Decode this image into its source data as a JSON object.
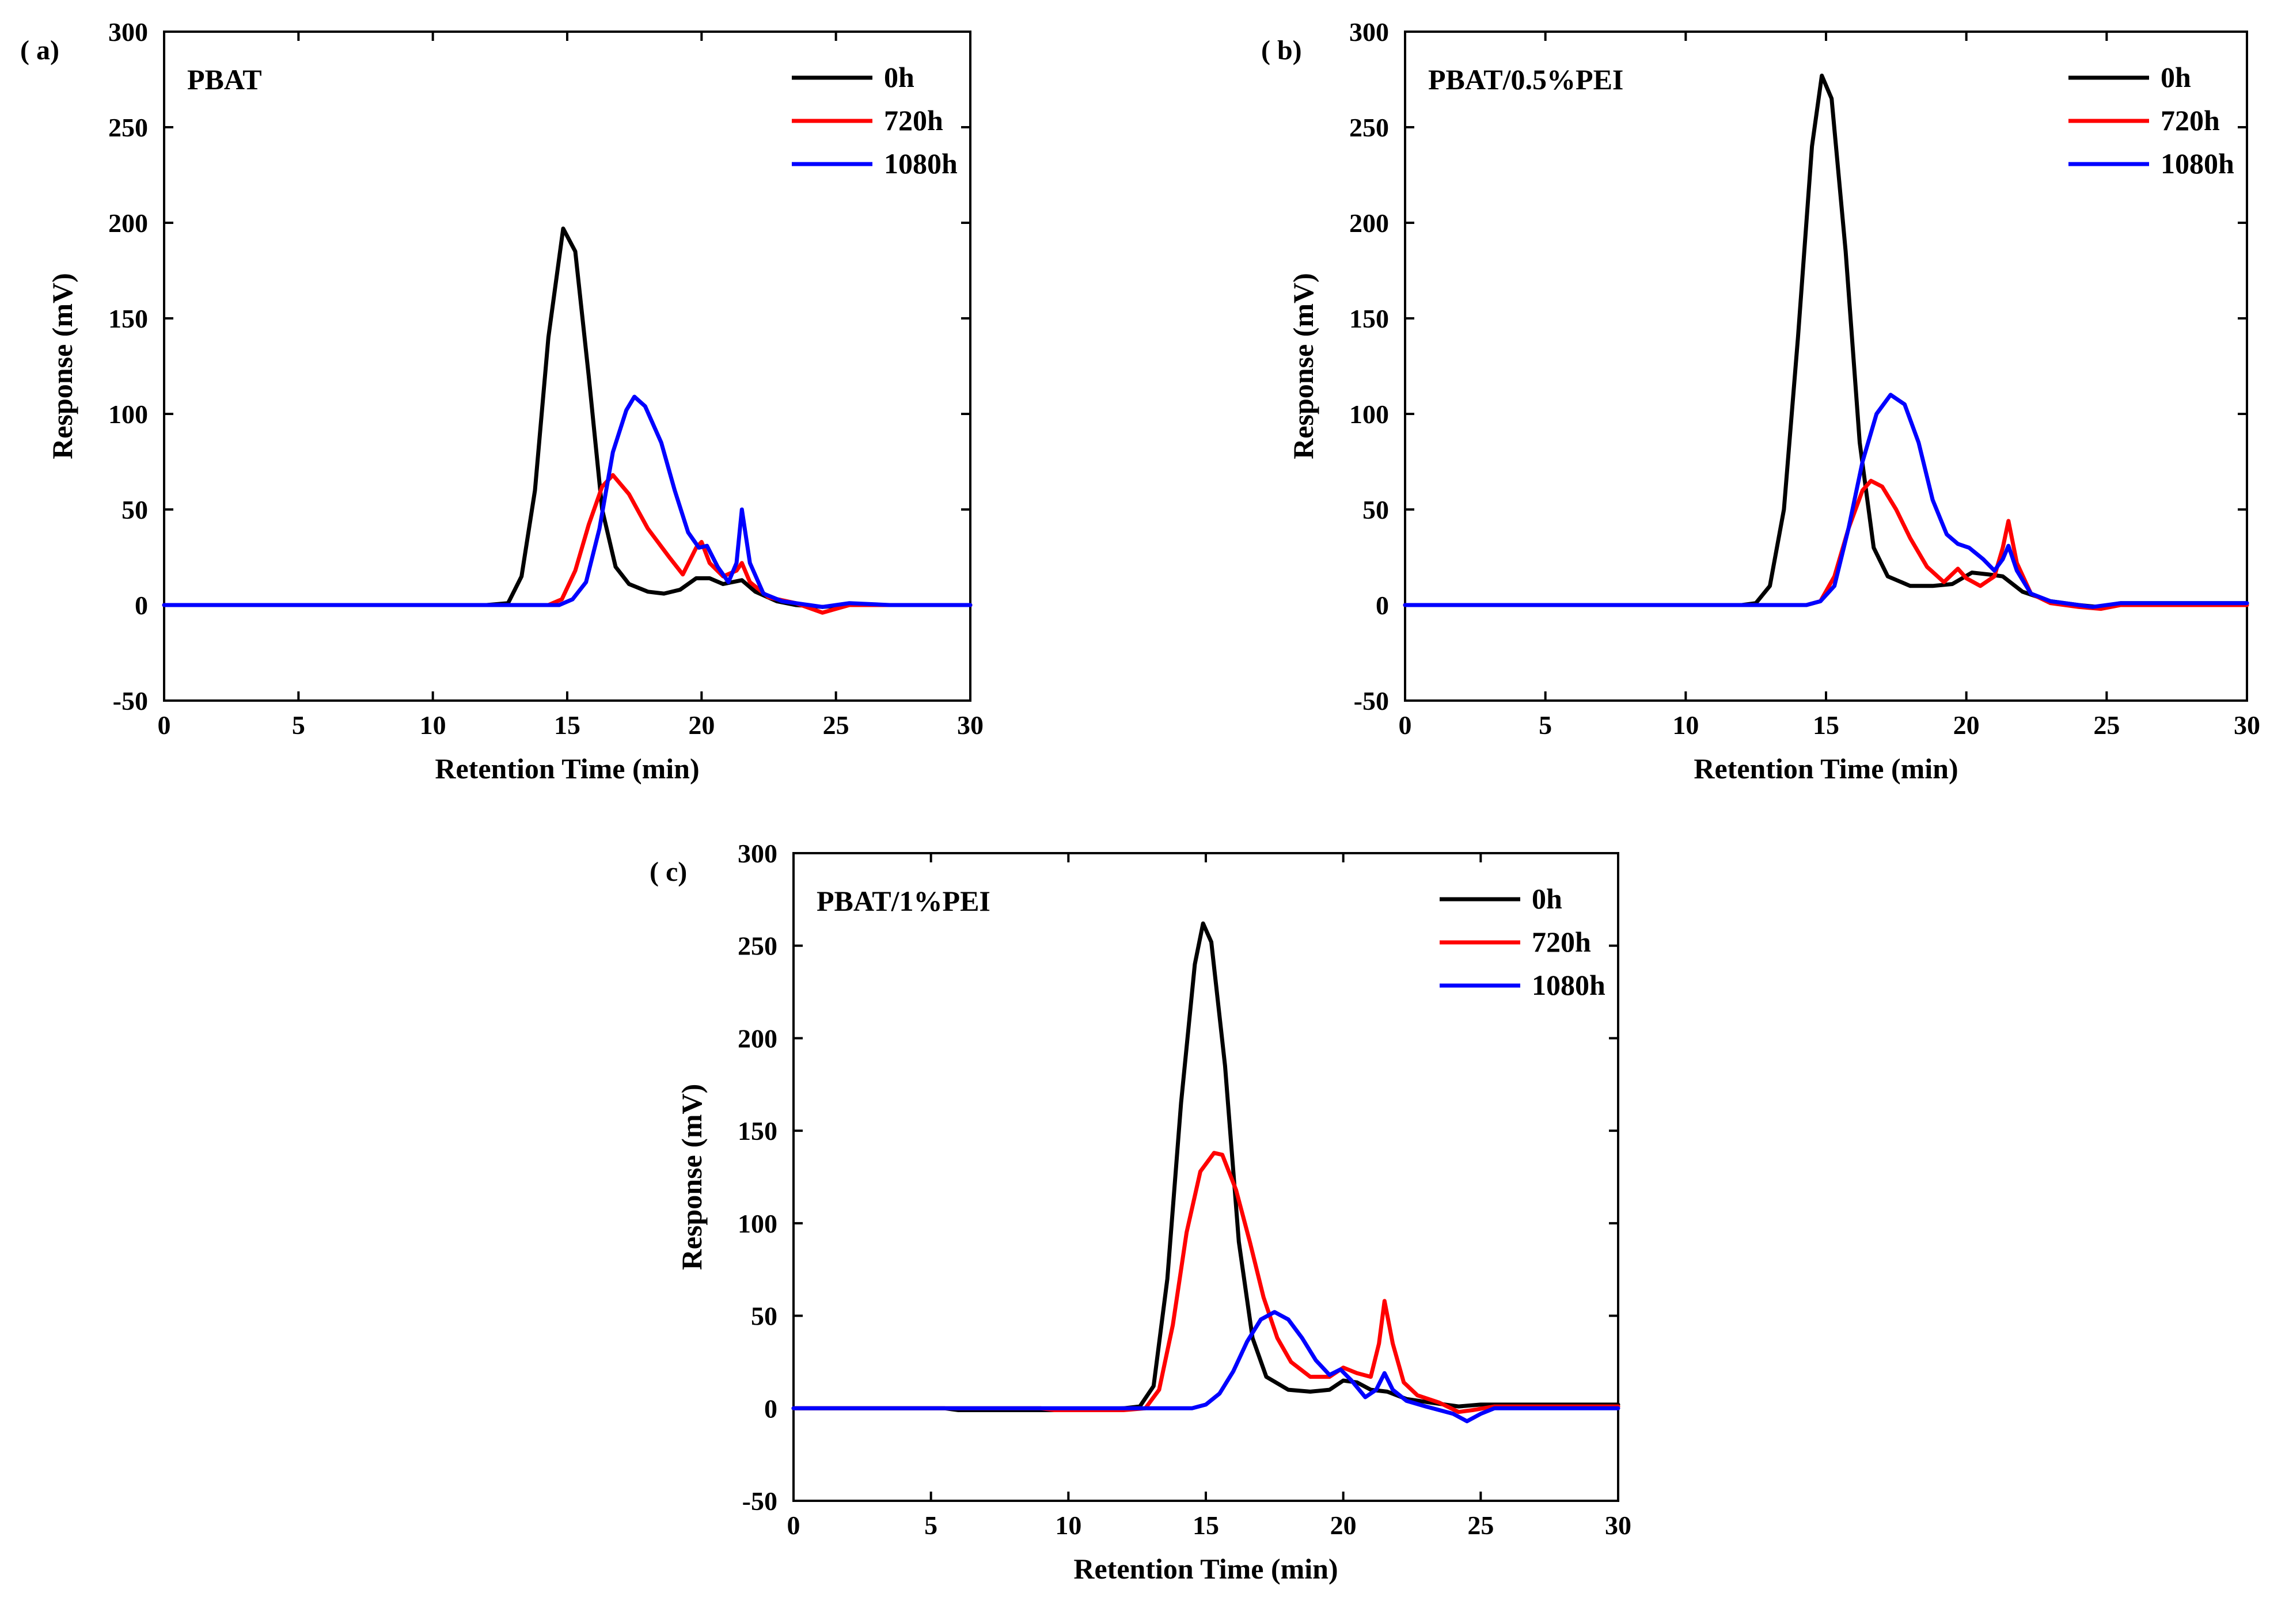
{
  "figure": {
    "xticks": [
      "0",
      "5",
      "10",
      "15",
      "20",
      "25",
      "30"
    ],
    "yticks": [
      "300",
      "250",
      "200",
      "150",
      "100",
      "50",
      "0",
      "-50"
    ]
  },
  "chart_data": [
    {
      "type": "line",
      "panel": "( a)",
      "sample": "PBAT",
      "xlabel": "Retention Time (min)",
      "ylabel": "Response (mV)",
      "xlim": [
        0,
        30
      ],
      "ylim": [
        -50,
        300
      ],
      "legend_position": "top-right",
      "series": [
        {
          "name": "0h",
          "color": "#000000",
          "points": [
            [
              0,
              0
            ],
            [
              12,
              0
            ],
            [
              12.8,
              1
            ],
            [
              13.3,
              15
            ],
            [
              13.8,
              60
            ],
            [
              14.3,
              140
            ],
            [
              14.85,
              197
            ],
            [
              15.3,
              185
            ],
            [
              15.8,
              120
            ],
            [
              16.3,
              50
            ],
            [
              16.8,
              20
            ],
            [
              17.3,
              11
            ],
            [
              18,
              7
            ],
            [
              18.6,
              6
            ],
            [
              19.2,
              8
            ],
            [
              19.8,
              14
            ],
            [
              20.3,
              14
            ],
            [
              20.8,
              11
            ],
            [
              21.5,
              13
            ],
            [
              22,
              7
            ],
            [
              22.8,
              2
            ],
            [
              23.5,
              0
            ],
            [
              24.5,
              -1
            ],
            [
              25.5,
              0
            ],
            [
              30,
              0
            ]
          ]
        },
        {
          "name": "720h",
          "color": "#ff0000",
          "points": [
            [
              0,
              0
            ],
            [
              14.3,
              0
            ],
            [
              14.8,
              3
            ],
            [
              15.3,
              18
            ],
            [
              15.8,
              42
            ],
            [
              16.3,
              62
            ],
            [
              16.7,
              68
            ],
            [
              17.3,
              58
            ],
            [
              18,
              40
            ],
            [
              18.8,
              25
            ],
            [
              19.3,
              16
            ],
            [
              19.8,
              30
            ],
            [
              20,
              33
            ],
            [
              20.3,
              22
            ],
            [
              20.8,
              15
            ],
            [
              21.3,
              18
            ],
            [
              21.5,
              22
            ],
            [
              21.8,
              12
            ],
            [
              22.5,
              4
            ],
            [
              23.5,
              1
            ],
            [
              24.5,
              -4
            ],
            [
              25.5,
              0
            ],
            [
              30,
              0
            ]
          ]
        },
        {
          "name": "1080h",
          "color": "#0000ff",
          "points": [
            [
              0,
              0
            ],
            [
              14.7,
              0
            ],
            [
              15.2,
              3
            ],
            [
              15.7,
              12
            ],
            [
              16.2,
              40
            ],
            [
              16.7,
              80
            ],
            [
              17.2,
              102
            ],
            [
              17.5,
              109
            ],
            [
              17.9,
              104
            ],
            [
              18.5,
              85
            ],
            [
              19,
              60
            ],
            [
              19.5,
              38
            ],
            [
              19.9,
              30
            ],
            [
              20.2,
              31
            ],
            [
              20.6,
              20
            ],
            [
              21,
              12
            ],
            [
              21.3,
              22
            ],
            [
              21.5,
              50
            ],
            [
              21.8,
              22
            ],
            [
              22.3,
              6
            ],
            [
              23,
              2
            ],
            [
              24,
              0
            ],
            [
              24.5,
              -1
            ],
            [
              25.5,
              1
            ],
            [
              27,
              0
            ],
            [
              30,
              0
            ]
          ]
        }
      ]
    },
    {
      "type": "line",
      "panel": "( b)",
      "sample": "PBAT/0.5%PEI",
      "xlabel": "Retention Time (min)",
      "ylabel": "Response (mV)",
      "xlim": [
        0,
        30
      ],
      "ylim": [
        -50,
        300
      ],
      "legend_position": "top-right",
      "series": [
        {
          "name": "0h",
          "color": "#000000",
          "points": [
            [
              0,
              0
            ],
            [
              12,
              0
            ],
            [
              12.5,
              1
            ],
            [
              13,
              10
            ],
            [
              13.5,
              50
            ],
            [
              14,
              140
            ],
            [
              14.5,
              240
            ],
            [
              14.85,
              277
            ],
            [
              15.2,
              265
            ],
            [
              15.7,
              185
            ],
            [
              16.2,
              85
            ],
            [
              16.7,
              30
            ],
            [
              17.2,
              15
            ],
            [
              18,
              10
            ],
            [
              18.8,
              10
            ],
            [
              19.5,
              11
            ],
            [
              20.2,
              17
            ],
            [
              20.8,
              16
            ],
            [
              21.3,
              15
            ],
            [
              22,
              7
            ],
            [
              23,
              2
            ],
            [
              24,
              0
            ],
            [
              24.7,
              -1
            ],
            [
              25.5,
              1
            ],
            [
              30,
              1
            ]
          ]
        },
        {
          "name": "720h",
          "color": "#ff0000",
          "points": [
            [
              0,
              0
            ],
            [
              14.3,
              0
            ],
            [
              14.8,
              2
            ],
            [
              15.3,
              15
            ],
            [
              15.8,
              40
            ],
            [
              16.3,
              60
            ],
            [
              16.6,
              65
            ],
            [
              17,
              62
            ],
            [
              17.5,
              50
            ],
            [
              18,
              35
            ],
            [
              18.6,
              20
            ],
            [
              19.2,
              12
            ],
            [
              19.7,
              19
            ],
            [
              20,
              14
            ],
            [
              20.5,
              10
            ],
            [
              21,
              15
            ],
            [
              21.3,
              30
            ],
            [
              21.5,
              44
            ],
            [
              21.8,
              22
            ],
            [
              22.3,
              6
            ],
            [
              23,
              1
            ],
            [
              24,
              -1
            ],
            [
              24.8,
              -2
            ],
            [
              25.5,
              0
            ],
            [
              30,
              0
            ]
          ]
        },
        {
          "name": "1080h",
          "color": "#0000ff",
          "points": [
            [
              0,
              0
            ],
            [
              14.3,
              0
            ],
            [
              14.8,
              2
            ],
            [
              15.3,
              10
            ],
            [
              15.8,
              40
            ],
            [
              16.3,
              75
            ],
            [
              16.8,
              100
            ],
            [
              17.3,
              110
            ],
            [
              17.8,
              105
            ],
            [
              18.3,
              85
            ],
            [
              18.8,
              55
            ],
            [
              19.3,
              37
            ],
            [
              19.7,
              32
            ],
            [
              20.1,
              30
            ],
            [
              20.6,
              24
            ],
            [
              21,
              18
            ],
            [
              21.3,
              24
            ],
            [
              21.5,
              31
            ],
            [
              21.8,
              18
            ],
            [
              22.3,
              6
            ],
            [
              23,
              2
            ],
            [
              24,
              0
            ],
            [
              24.5,
              -1
            ],
            [
              25.5,
              1
            ],
            [
              30,
              1
            ]
          ]
        }
      ]
    },
    {
      "type": "line",
      "panel": "( c)",
      "sample": "PBAT/1%PEI",
      "xlabel": "Retention Time (min)",
      "ylabel": "Response (mV)",
      "xlim": [
        0,
        30
      ],
      "ylim": [
        -50,
        300
      ],
      "legend_position": "top-right",
      "series": [
        {
          "name": "0h",
          "color": "#000000",
          "points": [
            [
              0,
              0
            ],
            [
              5.5,
              0
            ],
            [
              6,
              -1
            ],
            [
              10,
              -1
            ],
            [
              12,
              0
            ],
            [
              12.6,
              1
            ],
            [
              13.1,
              12
            ],
            [
              13.6,
              70
            ],
            [
              14.1,
              165
            ],
            [
              14.6,
              240
            ],
            [
              14.9,
              262
            ],
            [
              15.2,
              252
            ],
            [
              15.7,
              185
            ],
            [
              16.2,
              90
            ],
            [
              16.7,
              38
            ],
            [
              17.2,
              17
            ],
            [
              18,
              10
            ],
            [
              18.8,
              9
            ],
            [
              19.5,
              10
            ],
            [
              20,
              15
            ],
            [
              20.5,
              14
            ],
            [
              21,
              10
            ],
            [
              21.6,
              9
            ],
            [
              22.3,
              5
            ],
            [
              23.2,
              3
            ],
            [
              24.2,
              1
            ],
            [
              25,
              2
            ],
            [
              30,
              2
            ]
          ]
        },
        {
          "name": "720h",
          "color": "#ff0000",
          "points": [
            [
              0,
              0
            ],
            [
              9,
              0
            ],
            [
              9.5,
              -1
            ],
            [
              12,
              -1
            ],
            [
              12.8,
              0
            ],
            [
              13.3,
              10
            ],
            [
              13.8,
              45
            ],
            [
              14.3,
              95
            ],
            [
              14.8,
              128
            ],
            [
              15.3,
              138
            ],
            [
              15.6,
              137
            ],
            [
              16.1,
              118
            ],
            [
              16.6,
              90
            ],
            [
              17.1,
              60
            ],
            [
              17.6,
              38
            ],
            [
              18.1,
              25
            ],
            [
              18.8,
              17
            ],
            [
              19.5,
              17
            ],
            [
              20,
              22
            ],
            [
              20.5,
              19
            ],
            [
              21,
              17
            ],
            [
              21.3,
              35
            ],
            [
              21.5,
              58
            ],
            [
              21.8,
              35
            ],
            [
              22.2,
              14
            ],
            [
              22.7,
              7
            ],
            [
              23.5,
              3
            ],
            [
              24.2,
              -2
            ],
            [
              24.7,
              -1
            ],
            [
              25.5,
              1
            ],
            [
              30,
              1
            ]
          ]
        },
        {
          "name": "1080h",
          "color": "#0000ff",
          "points": [
            [
              0,
              0
            ],
            [
              14.5,
              0
            ],
            [
              15,
              2
            ],
            [
              15.5,
              8
            ],
            [
              16,
              20
            ],
            [
              16.5,
              36
            ],
            [
              17,
              48
            ],
            [
              17.5,
              52
            ],
            [
              18,
              48
            ],
            [
              18.5,
              38
            ],
            [
              19,
              26
            ],
            [
              19.5,
              18
            ],
            [
              19.9,
              21
            ],
            [
              20.3,
              15
            ],
            [
              20.8,
              6
            ],
            [
              21.2,
              10
            ],
            [
              21.5,
              19
            ],
            [
              21.8,
              10
            ],
            [
              22.3,
              4
            ],
            [
              23,
              1
            ],
            [
              24,
              -3
            ],
            [
              24.5,
              -7
            ],
            [
              25,
              -3
            ],
            [
              25.5,
              0
            ],
            [
              30,
              0
            ]
          ]
        }
      ]
    }
  ]
}
